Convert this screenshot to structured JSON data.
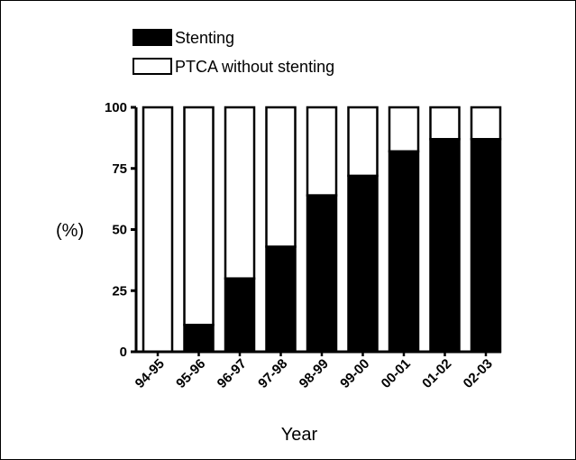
{
  "chart_data": {
    "type": "bar",
    "stacked": true,
    "xlabel": "Year",
    "ylabel": "(%)",
    "ylim": [
      0,
      100
    ],
    "yticks": [
      0,
      25,
      50,
      75,
      100
    ],
    "categories": [
      "94-95",
      "95-96",
      "96-97",
      "97-98",
      "98-99",
      "99-00",
      "00-01",
      "01-02",
      "02-03"
    ],
    "series": [
      {
        "name": "Stenting",
        "values": [
          0,
          11,
          30,
          43,
          64,
          72,
          82,
          87,
          87
        ],
        "color": "#000000"
      },
      {
        "name": "PTCA without stenting",
        "values": [
          100,
          89,
          70,
          57,
          36,
          28,
          18,
          13,
          13
        ],
        "color": "#ffffff"
      }
    ],
    "legend_position": "top-left",
    "grid": false
  }
}
